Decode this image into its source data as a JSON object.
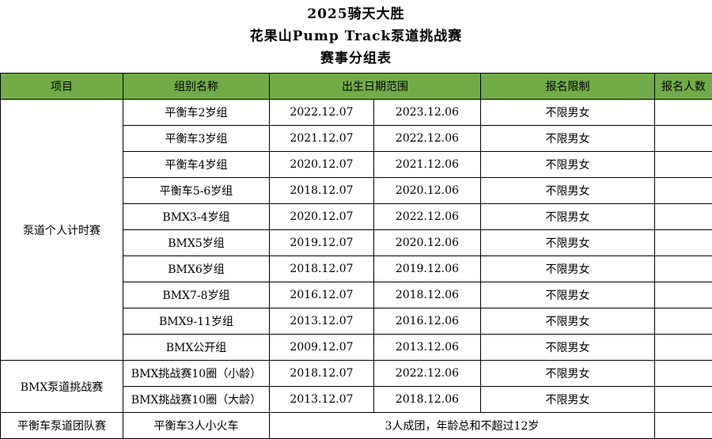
{
  "title": {
    "line1": "2025骑天大胜",
    "line2": "花果山Pump Track泵道挑战赛",
    "line3": "赛事分组表"
  },
  "colors": {
    "header_green": "#70AD47",
    "border": "#000000",
    "text": "#000000"
  },
  "table": {
    "headers": {
      "project": "项目",
      "group_name": "组别名称",
      "birth_range": "出生日期范围",
      "restriction": "报名限制",
      "count": "报名人数"
    },
    "groups": [
      {
        "project": "泵道个人计时赛",
        "rows": [
          {
            "group_name": "平衡车2岁组",
            "birth_start": "2022.12.07",
            "birth_end": "2023.12.06",
            "restriction": "不限男女",
            "count": ""
          },
          {
            "group_name": "平衡车3岁组",
            "birth_start": "2021.12.07",
            "birth_end": "2022.12.06",
            "restriction": "不限男女",
            "count": ""
          },
          {
            "group_name": "平衡车4岁组",
            "birth_start": "2020.12.07",
            "birth_end": "2021.12.06",
            "restriction": "不限男女",
            "count": ""
          },
          {
            "group_name": "平衡车5-6岁组",
            "birth_start": "2018.12.07",
            "birth_end": "2020.12.06",
            "restriction": "不限男女",
            "count": ""
          },
          {
            "group_name": "BMX3-4岁组",
            "birth_start": "2020.12.07",
            "birth_end": "2022.12.06",
            "restriction": "不限男女",
            "count": ""
          },
          {
            "group_name": "BMX5岁组",
            "birth_start": "2019.12.07",
            "birth_end": "2020.12.06",
            "restriction": "不限男女",
            "count": ""
          },
          {
            "group_name": "BMX6岁组",
            "birth_start": "2018.12.07",
            "birth_end": "2019.12.06",
            "restriction": "不限男女",
            "count": ""
          },
          {
            "group_name": "BMX7-8岁组",
            "birth_start": "2016.12.07",
            "birth_end": "2018.12.06",
            "restriction": "不限男女",
            "count": ""
          },
          {
            "group_name": "BMX9-11岁组",
            "birth_start": "2013.12.07",
            "birth_end": "2016.12.06",
            "restriction": "不限男女",
            "count": ""
          },
          {
            "group_name": "BMX公开组",
            "birth_start": "2009.12.07",
            "birth_end": "2013.12.06",
            "restriction": "不限男女",
            "count": ""
          }
        ]
      },
      {
        "project": "BMX泵道挑战赛",
        "rows": [
          {
            "group_name": "BMX挑战赛10圈（小龄）",
            "birth_start": "2018.12.07",
            "birth_end": "2022.12.06",
            "restriction": "不限男女",
            "count": ""
          },
          {
            "group_name": "BMX挑战赛10圈（大龄）",
            "birth_start": "2013.12.07",
            "birth_end": "2018.12.06",
            "restriction": "不限男女",
            "count": ""
          }
        ]
      },
      {
        "project": "平衡车泵道团队赛",
        "rows": [
          {
            "group_name": "平衡车3人小火车",
            "note_span": "3人成团，年龄总和不超过12岁",
            "count": ""
          }
        ]
      }
    ]
  }
}
